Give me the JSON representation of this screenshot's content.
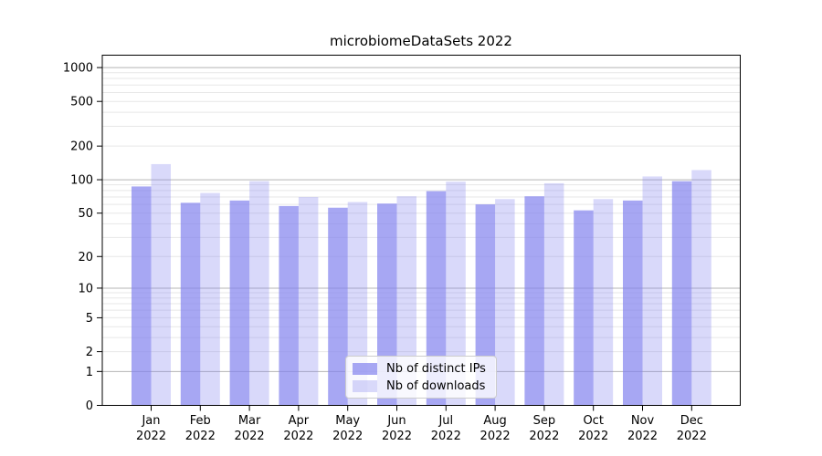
{
  "figure": {
    "background": "#ffffff",
    "title": "microbiomeDataSets 2022"
  },
  "chart_data": {
    "type": "bar",
    "title": "microbiomeDataSets 2022",
    "x_year": "2022",
    "categories": [
      "Jan",
      "Feb",
      "Mar",
      "Apr",
      "May",
      "Jun",
      "Jul",
      "Aug",
      "Sep",
      "Oct",
      "Nov",
      "Dec"
    ],
    "series": [
      {
        "name": "Nb of distinct IPs",
        "color": "rgba(130,130,238,0.70)",
        "color_on_white": "#a7a7f1",
        "values": [
          87,
          62,
          65,
          58,
          56,
          61,
          79,
          60,
          71,
          53,
          65,
          97
        ]
      },
      {
        "name": "Nb of downloads",
        "color": "rgba(130,130,238,0.30)",
        "color_on_white": "#d9d9f8",
        "values": [
          138,
          76,
          97,
          70,
          63,
          71,
          96,
          67,
          93,
          67,
          107,
          122
        ]
      }
    ],
    "y_ticks": [
      1000,
      500,
      200,
      100,
      50,
      20,
      10,
      5,
      2,
      1,
      0
    ],
    "y_scale": "log10(1+value)",
    "ylim": [
      0,
      1300
    ],
    "grid": "horizontal",
    "grid_major_values": [
      1,
      10,
      100,
      1000
    ],
    "grid_major_color": "#b5b5b5",
    "grid_minor_color": "#e7e7e7",
    "axis_color": "#000000",
    "legend_position": "bottom-center"
  }
}
